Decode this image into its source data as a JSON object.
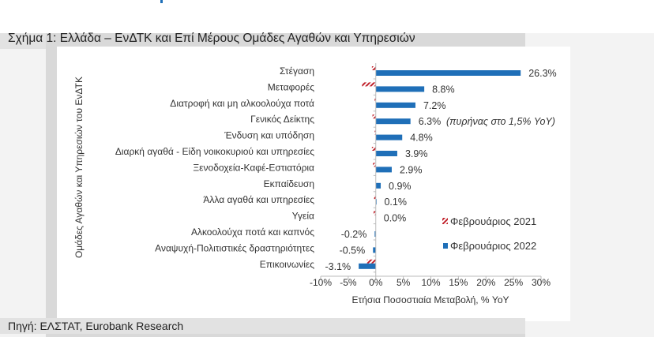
{
  "title": "Σχήμα 1: Ελλάδα – ΕνΔΤΚ και Επί Μέρους Ομάδες Αγαθών και Υπηρεσιών",
  "source": "Πηγή: ΕΛΣΤΑΤ, Eurobank Research",
  "chart_data": {
    "type": "bar",
    "orientation": "horizontal",
    "xlabel": "Ετήσια Ποσοστιαία Μεταβολή, % YoY",
    "ylabel": "Ομάδες Αγαθών και Υπηρεσιών του ΕνΔΤΚ",
    "xlim": [
      -10,
      30
    ],
    "xticks": [
      -10,
      -5,
      0,
      5,
      10,
      15,
      20,
      25,
      30
    ],
    "xtick_labels": [
      "-10%",
      "-5%",
      "0%",
      "5%",
      "10%",
      "15%",
      "20%",
      "25%",
      "30%"
    ],
    "grid": false,
    "legend_position": "right",
    "categories": [
      "Στέγαση",
      "Μεταφορές",
      "Διατροφή και μη αλκοολούχα ποτά",
      "Γενικός Δείκτης",
      "Ένδυση και υπόδηση",
      "Διαρκή αγαθά - Είδη νοικοκυριού και υπηρεσίες",
      "Ξενοδοχεία-Καφέ-Εστιατόρια",
      "Εκπαίδευση",
      "Άλλα αγαθά και υπηρεσίες",
      "Υγεία",
      "Αλκοολούχα ποτά και καπνός",
      "Αναψυχή-Πολιτιστικές δραστηριότητες",
      "Επικοινωνίες"
    ],
    "series": [
      {
        "name": "Φεβρουάριος 2021",
        "color": "#c0202a",
        "pattern": "hatched",
        "values": [
          -0.7,
          -2.5,
          -0.2,
          -0.6,
          -0.2,
          -0.7,
          -0.5,
          0.0,
          -0.3,
          -0.4,
          0.0,
          0.0,
          -1.6
        ]
      },
      {
        "name": "Φεβρουάριος 2022",
        "color": "#1f6fb8",
        "values": [
          26.3,
          8.8,
          7.2,
          6.3,
          4.8,
          3.9,
          2.9,
          0.9,
          0.1,
          0.0,
          -0.2,
          -0.5,
          -3.1
        ],
        "data_labels": [
          "26.3%",
          "8.8%",
          "7.2%",
          "6.3%",
          "4.8%",
          "3.9%",
          "2.9%",
          "0.9%",
          "0.1%",
          "0.0%",
          "-0.2%",
          "-0.5%",
          "-3.1%"
        ]
      }
    ],
    "annotation": "(πυρήνας στο 1,5% YoY)"
  }
}
